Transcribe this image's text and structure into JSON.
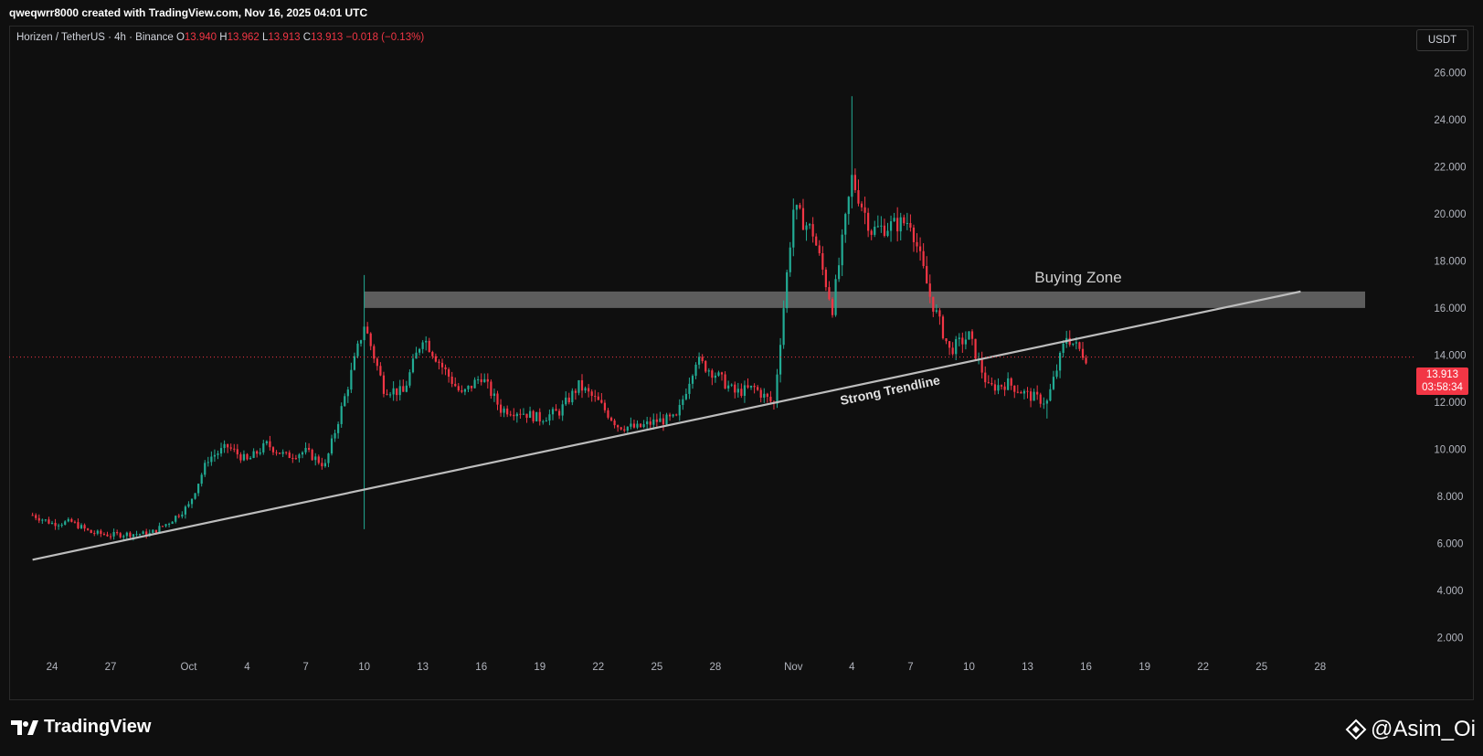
{
  "header": {
    "created_by": "qweqwrr8000 created with TradingView.com, Nov 16, 2025 04:01 UTC"
  },
  "symbol_bar": {
    "symbol": "Horizen / TetherUS · 4h · Binance",
    "o_label": "O",
    "o_value": "13.940",
    "h_label": "H",
    "h_value": "13.962",
    "l_label": "L",
    "l_value": "13.913",
    "c_label": "C",
    "c_value": "13.913",
    "change": "−0.018 (−0.13%)"
  },
  "currency_button": "USDT",
  "last_price": {
    "price": "13.913",
    "countdown": "03:58:34"
  },
  "footer": {
    "logo_text": "TradingView",
    "watermark": "@Asim_Oi"
  },
  "colors": {
    "up": "#22ab94",
    "down": "#f23645",
    "background": "#0f0f0f",
    "zone": "#6b6b6b",
    "trendline": "#bdbdbd"
  },
  "chart_data": {
    "type": "candlestick",
    "ylim": [
      1,
      28
    ],
    "y_ticks": [
      "26.000",
      "24.000",
      "22.000",
      "20.000",
      "18.000",
      "16.000",
      "14.000",
      "12.000",
      "10.000",
      "8.000",
      "6.000",
      "4.000",
      "2.000"
    ],
    "x_ticks": [
      "24",
      "27",
      "Oct",
      "4",
      "7",
      "10",
      "13",
      "16",
      "19",
      "22",
      "25",
      "28",
      "Nov",
      "4",
      "7",
      "10",
      "13",
      "16",
      "19",
      "22",
      "25",
      "28"
    ],
    "x_tick_dates": [
      "2025-09-24",
      "2025-09-27",
      "2025-10-01",
      "2025-10-04",
      "2025-10-07",
      "2025-10-10",
      "2025-10-13",
      "2025-10-16",
      "2025-10-19",
      "2025-10-22",
      "2025-10-25",
      "2025-10-28",
      "2025-11-01",
      "2025-11-04",
      "2025-11-07",
      "2025-11-10",
      "2025-11-13",
      "2025-11-16",
      "2025-11-19",
      "2025-11-22",
      "2025-11-25",
      "2025-11-28"
    ],
    "anchors": [
      {
        "date": "2025-09-23",
        "close": 7.2
      },
      {
        "date": "2025-09-24",
        "close": 6.85
      },
      {
        "date": "2025-09-25",
        "close": 6.9
      },
      {
        "date": "2025-09-26",
        "close": 6.45
      },
      {
        "date": "2025-09-27",
        "close": 6.35
      },
      {
        "date": "2025-09-28",
        "close": 6.4
      },
      {
        "date": "2025-09-29",
        "close": 6.4
      },
      {
        "date": "2025-09-30",
        "close": 6.9
      },
      {
        "date": "2025-10-01",
        "close": 7.6
      },
      {
        "date": "2025-10-02",
        "close": 9.6
      },
      {
        "date": "2025-10-03",
        "close": 10.1
      },
      {
        "date": "2025-10-04",
        "close": 9.5
      },
      {
        "date": "2025-10-05",
        "close": 10.2
      },
      {
        "date": "2025-10-06",
        "close": 9.7
      },
      {
        "date": "2025-10-07",
        "close": 9.9
      },
      {
        "date": "2025-10-08",
        "close": 9.3
      },
      {
        "date": "2025-10-09",
        "close": 12.2
      },
      {
        "date": "2025-10-10",
        "close": 15.3
      },
      {
        "date": "2025-10-11",
        "close": 12.6
      },
      {
        "date": "2025-10-12",
        "close": 12.4
      },
      {
        "date": "2025-10-13",
        "close": 14.8
      },
      {
        "date": "2025-10-14",
        "close": 13.5
      },
      {
        "date": "2025-10-15",
        "close": 12.3
      },
      {
        "date": "2025-10-16",
        "close": 13.1
      },
      {
        "date": "2025-10-17",
        "close": 11.7
      },
      {
        "date": "2025-10-18",
        "close": 11.6
      },
      {
        "date": "2025-10-19",
        "close": 11.3
      },
      {
        "date": "2025-10-20",
        "close": 11.6
      },
      {
        "date": "2025-10-21",
        "close": 12.7
      },
      {
        "date": "2025-10-22",
        "close": 12.0
      },
      {
        "date": "2025-10-23",
        "close": 11.0
      },
      {
        "date": "2025-10-24",
        "close": 10.9
      },
      {
        "date": "2025-10-25",
        "close": 11.2
      },
      {
        "date": "2025-10-26",
        "close": 11.3
      },
      {
        "date": "2025-10-27",
        "close": 13.8
      },
      {
        "date": "2025-10-28",
        "close": 13.2
      },
      {
        "date": "2025-10-29",
        "close": 12.4
      },
      {
        "date": "2025-10-30",
        "close": 12.6
      },
      {
        "date": "2025-10-31",
        "close": 11.9
      },
      {
        "date": "2025-11-01",
        "close": 20.2
      },
      {
        "date": "2025-11-02",
        "close": 19.2
      },
      {
        "date": "2025-11-03",
        "close": 16.0
      },
      {
        "date": "2025-11-04",
        "close": 21.5
      },
      {
        "date": "2025-11-05",
        "close": 19.3
      },
      {
        "date": "2025-11-06",
        "close": 19.5
      },
      {
        "date": "2025-11-07",
        "close": 19.7
      },
      {
        "date": "2025-11-08",
        "close": 16.5
      },
      {
        "date": "2025-11-09",
        "close": 14.2
      },
      {
        "date": "2025-11-10",
        "close": 14.8
      },
      {
        "date": "2025-11-11",
        "close": 12.6
      },
      {
        "date": "2025-11-12",
        "close": 12.8
      },
      {
        "date": "2025-11-13",
        "close": 12.3
      },
      {
        "date": "2025-11-14",
        "close": 12.0
      },
      {
        "date": "2025-11-15",
        "close": 14.8
      },
      {
        "date": "2025-11-16",
        "close": 13.913
      }
    ],
    "notable_extremes": [
      {
        "date": "2025-10-10",
        "low": 6.6,
        "high": 17.4
      },
      {
        "date": "2025-11-04",
        "high": 25.0
      },
      {
        "date": "2025-11-14",
        "low": 11.3
      }
    ],
    "buying_zone": {
      "label": "Buying Zone",
      "low": 16.0,
      "high": 16.7,
      "start": "2025-10-10"
    },
    "trendline": {
      "label": "Strong Trendline",
      "start_date": "2025-09-23",
      "start_price": 5.3,
      "end_date": "2025-11-27",
      "end_price": 16.7
    },
    "current_price_line": 13.913
  }
}
